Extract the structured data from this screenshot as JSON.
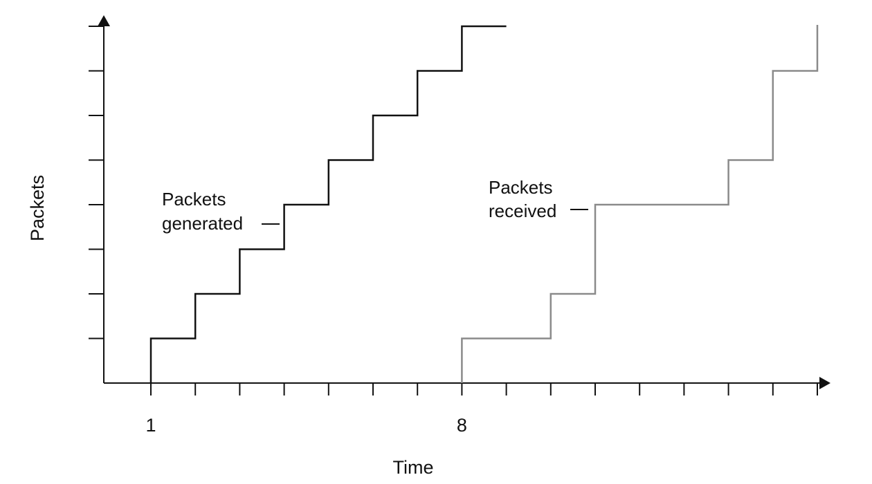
{
  "chart_data": {
    "type": "line",
    "xlabel": "Time",
    "ylabel": "Packets",
    "x_tick_labels": [
      {
        "x": 1,
        "label": "1"
      },
      {
        "x": 8,
        "label": "8"
      }
    ],
    "xlim": [
      0,
      16.9
    ],
    "ylim": [
      0,
      8.1
    ],
    "y_ticks": [
      1,
      2,
      3,
      4,
      5,
      6,
      7,
      8
    ],
    "x_ticks": [
      1,
      2,
      3,
      4,
      5,
      6,
      7,
      8,
      9,
      10,
      11,
      12,
      13,
      14,
      15,
      16
    ],
    "grid": false,
    "legend": "none",
    "series": [
      {
        "name": "Packets generated",
        "step": "post",
        "color": "#111111",
        "points": [
          {
            "x": 1,
            "y": 0
          },
          {
            "x": 1,
            "y": 1
          },
          {
            "x": 2,
            "y": 1
          },
          {
            "x": 2,
            "y": 2
          },
          {
            "x": 3,
            "y": 2
          },
          {
            "x": 3,
            "y": 3
          },
          {
            "x": 4,
            "y": 3
          },
          {
            "x": 4,
            "y": 4
          },
          {
            "x": 5,
            "y": 4
          },
          {
            "x": 5,
            "y": 5
          },
          {
            "x": 6,
            "y": 5
          },
          {
            "x": 6,
            "y": 6
          },
          {
            "x": 7,
            "y": 6
          },
          {
            "x": 7,
            "y": 7
          },
          {
            "x": 8,
            "y": 7
          },
          {
            "x": 8,
            "y": 8
          },
          {
            "x": 9,
            "y": 8
          }
        ]
      },
      {
        "name": "Packets received",
        "step": "post",
        "color": "#8a8a8a",
        "points": [
          {
            "x": 8,
            "y": 0
          },
          {
            "x": 8,
            "y": 1
          },
          {
            "x": 10,
            "y": 1
          },
          {
            "x": 10,
            "y": 2
          },
          {
            "x": 11,
            "y": 2
          },
          {
            "x": 11,
            "y": 4
          },
          {
            "x": 14,
            "y": 4
          },
          {
            "x": 14,
            "y": 5
          },
          {
            "x": 15,
            "y": 5
          },
          {
            "x": 15,
            "y": 7
          },
          {
            "x": 16,
            "y": 7
          },
          {
            "x": 16,
            "y": 8
          }
        ]
      }
    ],
    "annotations": [
      {
        "lines": [
          "Packets",
          "generated"
        ],
        "series": "Packets generated"
      },
      {
        "lines": [
          "Packets",
          "received"
        ],
        "series": "Packets received"
      }
    ]
  }
}
